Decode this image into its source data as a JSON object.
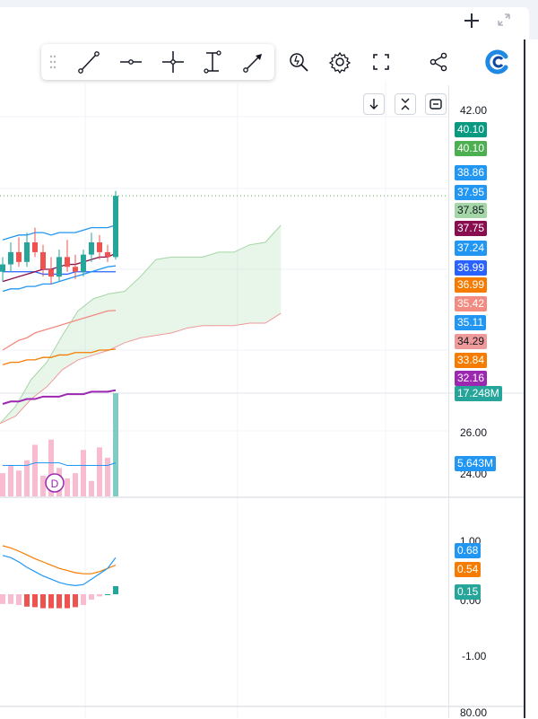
{
  "window": {
    "add_icon": "plus-icon",
    "expand_icon": "expand-diagonal-icon"
  },
  "drawing_toolbar": {
    "tools": [
      "trend-line-icon",
      "horizontal-line-icon",
      "crosshair-icon",
      "fixed-range-icon",
      "arrow-line-icon"
    ],
    "right_tools": [
      "magnifier-alert-icon",
      "gear-icon",
      "fullscreen-icon",
      "share-icon",
      "brand-logo-icon"
    ]
  },
  "pane_buttons": [
    "arrow-down-icon",
    "collapse-icon",
    "restore-icon"
  ],
  "chart_data": {
    "type": "line",
    "price_axis": {
      "ticks": [
        "42.00"
      ],
      "range": [
        30.5,
        42.6
      ]
    },
    "price_labels": [
      {
        "value": "40.10",
        "color": "#089981"
      },
      {
        "value": "40.10",
        "color": "#4caf50"
      },
      {
        "value": "38.86",
        "color": "#2196f3"
      },
      {
        "value": "37.95",
        "color": "#2196f3"
      },
      {
        "value": "37.85",
        "color": "#a5d6a7",
        "text_color": "#131722"
      },
      {
        "value": "37.75",
        "color": "#880e4f"
      },
      {
        "value": "37.24",
        "color": "#2196f3"
      },
      {
        "value": "36.99",
        "color": "#2962ff"
      },
      {
        "value": "36.99",
        "color": "#f57c00"
      },
      {
        "value": "35.42",
        "color": "#f28b82"
      },
      {
        "value": "35.11",
        "color": "#2196f3"
      },
      {
        "value": "34.29",
        "color": "#ef9a9a",
        "text_color": "#131722"
      },
      {
        "value": "33.84",
        "color": "#f57c00"
      },
      {
        "value": "32.16",
        "color": "#9c27b0"
      }
    ],
    "candles": [
      {
        "o": 37.0,
        "h": 37.6,
        "l": 36.6,
        "c": 37.3
      },
      {
        "o": 37.3,
        "h": 38.2,
        "l": 37.0,
        "c": 37.8
      },
      {
        "o": 37.8,
        "h": 38.4,
        "l": 37.2,
        "c": 37.4
      },
      {
        "o": 37.4,
        "h": 38.6,
        "l": 37.2,
        "c": 38.2
      },
      {
        "o": 38.2,
        "h": 38.8,
        "l": 37.6,
        "c": 37.8
      },
      {
        "o": 37.8,
        "h": 38.1,
        "l": 36.8,
        "c": 37.1
      },
      {
        "o": 37.1,
        "h": 37.6,
        "l": 36.5,
        "c": 36.8
      },
      {
        "o": 36.8,
        "h": 37.9,
        "l": 36.6,
        "c": 37.6
      },
      {
        "o": 37.6,
        "h": 38.3,
        "l": 37.0,
        "c": 37.2
      },
      {
        "o": 37.2,
        "h": 37.7,
        "l": 36.7,
        "c": 37.0
      },
      {
        "o": 37.0,
        "h": 37.9,
        "l": 36.8,
        "c": 37.7
      },
      {
        "o": 37.7,
        "h": 38.6,
        "l": 37.4,
        "c": 38.2
      },
      {
        "o": 38.2,
        "h": 38.5,
        "l": 37.5,
        "c": 37.8
      },
      {
        "o": 37.8,
        "h": 38.1,
        "l": 37.4,
        "c": 37.6
      },
      {
        "o": 37.6,
        "h": 40.3,
        "l": 37.5,
        "c": 40.1
      }
    ],
    "ma_lines": [
      {
        "color": "#2196f3",
        "values": [
          38.3,
          38.4,
          38.5,
          38.5,
          38.6,
          38.6,
          38.5,
          38.6,
          38.6,
          38.6,
          38.7,
          38.8,
          38.8,
          38.8,
          38.9
        ]
      },
      {
        "color": "#2962ff",
        "values": [
          37.0,
          37.0,
          37.0,
          37.0,
          37.0,
          36.9,
          36.9,
          36.9,
          36.9,
          37.0,
          37.0,
          37.0,
          37.0,
          37.0,
          37.0
        ]
      },
      {
        "color": "#880e4f",
        "values": [
          36.6,
          36.7,
          36.8,
          36.9,
          37.0,
          37.1,
          37.1,
          37.2,
          37.3,
          37.3,
          37.4,
          37.5,
          37.6,
          37.6,
          37.75
        ]
      },
      {
        "color": "#2196f3",
        "values": [
          36.2,
          36.3,
          36.3,
          36.4,
          36.4,
          36.5,
          36.5,
          36.6,
          36.7,
          36.8,
          36.9,
          37.0,
          37.1,
          37.2,
          37.24
        ]
      },
      {
        "color": "#f28b82",
        "values": [
          33.8,
          34.0,
          34.2,
          34.3,
          34.5,
          34.6,
          34.7,
          34.8,
          34.9,
          35.0,
          35.1,
          35.2,
          35.3,
          35.4,
          35.42
        ]
      },
      {
        "color": "#f57c00",
        "values": [
          33.2,
          33.3,
          33.3,
          33.4,
          33.4,
          33.5,
          33.5,
          33.6,
          33.6,
          33.7,
          33.7,
          33.7,
          33.8,
          33.8,
          33.84
        ]
      },
      {
        "color": "#9c27b0",
        "values": [
          31.6,
          31.7,
          31.7,
          31.8,
          31.8,
          31.9,
          31.9,
          31.9,
          32.0,
          32.0,
          32.0,
          32.1,
          32.1,
          32.1,
          32.16
        ]
      }
    ],
    "cloud": {
      "upper": [
        30.8,
        31.5,
        32.6,
        33.3,
        34.4,
        35.4,
        35.9,
        36.1,
        36.2,
        36.8,
        37.5,
        37.6,
        37.6,
        37.6,
        37.8,
        37.8,
        38.1,
        38.2,
        38.9
      ],
      "lower": [
        30.8,
        31.1,
        31.8,
        32.3,
        33.0,
        33.4,
        33.6,
        33.8,
        34.1,
        34.3,
        34.4,
        34.5,
        34.7,
        34.8,
        34.8,
        34.8,
        34.9,
        34.9,
        35.3
      ]
    },
    "volume": {
      "axis_ticks": [
        "26.00",
        "24.00"
      ],
      "labels": [
        {
          "value": "17.248M",
          "color": "#26a69a"
        },
        {
          "value": "5.643M",
          "color": "#2196f3"
        }
      ],
      "bars": [
        9,
        12,
        10,
        14,
        20,
        8,
        22,
        11,
        7,
        9,
        18,
        6,
        19,
        15,
        40
      ],
      "ma": [
        12,
        12,
        12,
        12,
        13,
        13,
        13,
        13,
        12,
        12,
        12,
        12,
        12,
        12,
        13
      ],
      "dividend_marker": "D"
    },
    "macd": {
      "axis_ticks": [
        "1.00",
        "0.00",
        "-1.00"
      ],
      "labels": [
        {
          "value": "0.68",
          "color": "#2196f3"
        },
        {
          "value": "0.54",
          "color": "#f57c00"
        },
        {
          "value": "0.15",
          "color": "#26a69a"
        }
      ],
      "macd_line": [
        0.72,
        0.68,
        0.6,
        0.5,
        0.42,
        0.34,
        0.28,
        0.22,
        0.18,
        0.16,
        0.18,
        0.28,
        0.38,
        0.48,
        0.68
      ],
      "signal_line": [
        0.9,
        0.86,
        0.8,
        0.73,
        0.66,
        0.6,
        0.54,
        0.48,
        0.44,
        0.4,
        0.38,
        0.38,
        0.42,
        0.48,
        0.54
      ],
      "histogram": [
        -0.18,
        -0.18,
        -0.2,
        -0.23,
        -0.24,
        -0.26,
        -0.26,
        -0.26,
        -0.26,
        -0.24,
        -0.2,
        -0.1,
        -0.04,
        0.0,
        0.15
      ]
    },
    "rsi": {
      "axis_ticks": [
        "80.00"
      ]
    }
  }
}
